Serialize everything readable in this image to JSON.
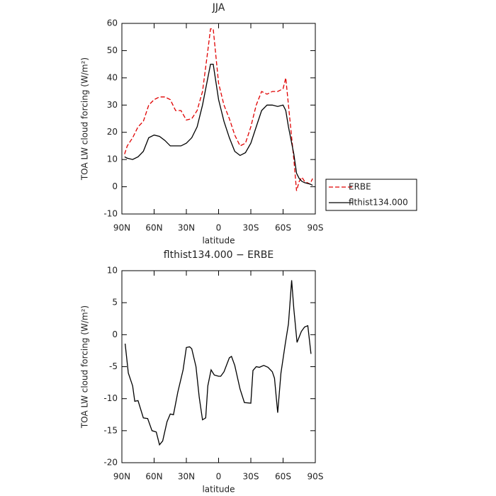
{
  "chart_data": [
    {
      "type": "line",
      "title": "JJA",
      "xlabel": "latitude",
      "ylabel": "TOA LW cloud forcing (W/m²)",
      "x": [
        87.5,
        85,
        80,
        75,
        70,
        65,
        60,
        55,
        50,
        45,
        40,
        35,
        30,
        25,
        20,
        15,
        10,
        7.5,
        5,
        0,
        -5,
        -10,
        -15,
        -20,
        -25,
        -30,
        -35,
        -40,
        -45,
        -50,
        -55,
        -60,
        -62.5,
        -65,
        -70,
        -72.5,
        -75,
        -77.5,
        -80,
        -85,
        -87.5
      ],
      "series": [
        {
          "name": "ERBE",
          "color": "#e00000",
          "dash": "dashed",
          "values": [
            12,
            15,
            18,
            22,
            24,
            30,
            32,
            33,
            33,
            32,
            28,
            28,
            24.5,
            25,
            28,
            35,
            50,
            58,
            58,
            38,
            30,
            25,
            19,
            15,
            16,
            22,
            30,
            35,
            34,
            35,
            35,
            36,
            40,
            30,
            10,
            -1.5,
            2,
            3.5,
            2,
            1,
            3
          ]
        },
        {
          "name": "flthist134.000",
          "color": "#000000",
          "dash": "solid",
          "values": [
            11,
            10.5,
            10,
            11,
            13,
            18,
            19,
            18.5,
            17,
            15,
            15,
            15,
            16,
            18,
            22,
            30,
            40,
            45,
            45,
            32,
            24,
            18,
            13,
            11.5,
            12.5,
            16,
            22,
            28,
            30,
            30,
            29.5,
            30,
            28,
            22,
            12,
            5,
            3,
            2,
            1.5,
            1,
            0.5
          ]
        }
      ],
      "xlim": [
        90,
        -90
      ],
      "xticks": [
        {
          "value": 90,
          "label": "90N"
        },
        {
          "value": 60,
          "label": "60N"
        },
        {
          "value": 30,
          "label": "30N"
        },
        0,
        {
          "value": -30,
          "label": "30S"
        },
        {
          "value": -60,
          "label": "60S"
        },
        {
          "value": -90,
          "label": "90S"
        }
      ],
      "ylim": [
        -10,
        60
      ],
      "yticks": [
        -10,
        0,
        10,
        20,
        30,
        40,
        50,
        60
      ],
      "legend": "outside right"
    },
    {
      "type": "line",
      "title": "flthist134.000 − ERBE",
      "xlabel": "latitude",
      "ylabel": "TOA LW cloud forcing (W/m²)",
      "x": [
        87,
        84,
        80,
        78,
        75,
        70,
        66,
        62,
        58,
        55,
        52,
        48,
        45,
        42,
        38,
        33,
        30,
        27,
        25,
        21,
        18,
        15,
        12,
        10,
        7,
        4,
        0,
        -2,
        -5,
        -10,
        -12,
        -15,
        -20,
        -24,
        -30,
        -32,
        -35,
        -38,
        -42,
        -46,
        -50,
        -52,
        -55,
        -58,
        -62,
        -65,
        -68,
        -70,
        -73,
        -77,
        -80,
        -83,
        -86
      ],
      "values": [
        -1.4,
        -6,
        -8,
        -10.4,
        -10.3,
        -13,
        -13.1,
        -15,
        -15.2,
        -17.2,
        -16.6,
        -13.6,
        -12.4,
        -12.5,
        -9,
        -5.5,
        -2,
        -1.9,
        -2.2,
        -5,
        -9.8,
        -13.3,
        -13,
        -8,
        -5.5,
        -6.3,
        -6.5,
        -6.5,
        -5.8,
        -3.6,
        -3.4,
        -4.8,
        -8.5,
        -10.6,
        -10.7,
        -5.6,
        -5,
        -5.1,
        -4.8,
        -5.1,
        -5.8,
        -6.8,
        -12.2,
        -6,
        -1.5,
        1.7,
        8.5,
        4,
        -1.2,
        0.5,
        1.2,
        1.4,
        -3
      ],
      "color": "#000000",
      "xlim": [
        90,
        -90
      ],
      "xticks": [
        {
          "value": 90,
          "label": "90N"
        },
        {
          "value": 60,
          "label": "60N"
        },
        {
          "value": 30,
          "label": "30N"
        },
        0,
        {
          "value": -30,
          "label": "30S"
        },
        {
          "value": -60,
          "label": "60S"
        },
        {
          "value": -90,
          "label": "90S"
        }
      ],
      "ylim": [
        -20,
        10
      ],
      "yticks": [
        -20,
        -15,
        -10,
        -5,
        0,
        5,
        10
      ]
    }
  ]
}
